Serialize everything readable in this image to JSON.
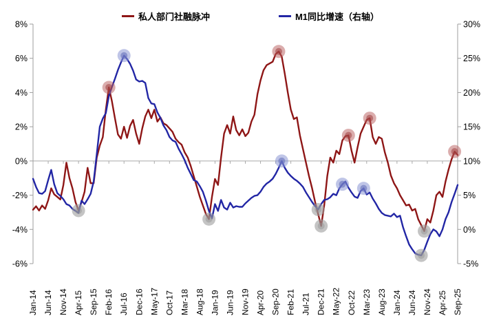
{
  "legend": {
    "series1": "私人部门社融脉冲",
    "series2": "M1同比增速（右轴）"
  },
  "colors": {
    "red_line": "#8e1616",
    "blue_line": "#2226a5",
    "grid": "#a9a9a9",
    "axis": "#9e9e9e",
    "tick_text": "#000000",
    "marker_red_outer": "rgba(184,92,92,0.5)",
    "marker_red_inner": "rgba(158,62,62,0.55)",
    "marker_blue_outer": "rgba(139,149,212,0.55)",
    "marker_blue_inner": "rgba(103,114,189,0.6)",
    "marker_gray_outer": "rgba(156,156,156,0.6)",
    "marker_gray_inner": "rgba(146,146,146,0.45)"
  },
  "chart_data": {
    "type": "line",
    "title": "",
    "x_unit": "month",
    "x_start": "Jan-2014",
    "x_end": "Sep-2025",
    "x_tick_every": 5,
    "x_tick_labels": [
      "Jan-14",
      "Jun-14",
      "Nov-14",
      "Apr-15",
      "Sep-15",
      "Feb-16",
      "Jul-16",
      "Dec-16",
      "May-17",
      "Oct-17",
      "Mar-18",
      "Aug-18",
      "Jan-19",
      "Jun-19",
      "Nov-19",
      "Apr-20",
      "Sep-20",
      "Feb-21",
      "Jul-21",
      "Dec-21",
      "May-22",
      "Oct-22",
      "Mar-23",
      "Aug-23",
      "Jan-24",
      "Jun-24",
      "Nov-24",
      "Apr-25",
      "Sep-25"
    ],
    "left_axis": {
      "min": -6,
      "max": 8,
      "tick_values": [
        8,
        6,
        4,
        2,
        0,
        -2,
        -4,
        -6
      ],
      "tick_labels": [
        "8%",
        "6%",
        "4%",
        "2%",
        "0%",
        "-2%",
        "-4%",
        "-6%"
      ]
    },
    "right_axis": {
      "min": -5,
      "max": 30,
      "tick_values": [
        30,
        25,
        20,
        15,
        10,
        5,
        0,
        -5
      ],
      "tick_labels": [
        "30%",
        "25%",
        "20%",
        "15%",
        "10%",
        "5%",
        "0%",
        "-5%"
      ]
    },
    "grid": "zero-line-only",
    "legend_position": "top",
    "series": [
      {
        "name": "私人部门社融脉冲",
        "axis": "left",
        "color_key": "red_line",
        "values": [
          -2.85,
          -2.65,
          -2.9,
          -2.6,
          -2.8,
          -2.3,
          -1.6,
          -1.95,
          -2.1,
          -2.25,
          -1.4,
          -0.1,
          -1.0,
          -1.6,
          -2.4,
          -2.9,
          -2.4,
          -1.8,
          -0.4,
          -1.3,
          -1.3,
          0.2,
          0.9,
          1.4,
          3.0,
          4.3,
          3.5,
          2.5,
          1.55,
          1.3,
          2.0,
          1.35,
          2.05,
          2.4,
          1.6,
          1.0,
          1.9,
          2.6,
          3.0,
          2.5,
          3.0,
          2.3,
          2.55,
          2.2,
          2.1,
          1.9,
          1.7,
          1.3,
          1.1,
          0.95,
          0.5,
          0.2,
          -0.3,
          -0.9,
          -1.5,
          -2.1,
          -2.6,
          -3.1,
          -3.4,
          -2.1,
          -1.05,
          -1.4,
          0.2,
          1.6,
          2.1,
          1.6,
          2.6,
          1.8,
          1.5,
          1.85,
          1.45,
          1.65,
          2.3,
          2.7,
          3.9,
          4.7,
          5.3,
          5.6,
          5.7,
          5.8,
          6.25,
          6.4,
          6.1,
          5.1,
          4.0,
          3.0,
          2.45,
          2.55,
          1.5,
          0.7,
          -0.1,
          -0.9,
          -1.6,
          -2.4,
          -3.1,
          -3.8,
          -2.6,
          -0.9,
          0.2,
          -0.1,
          0.6,
          0.4,
          1.2,
          1.45,
          1.5,
          0.6,
          -0.1,
          0.8,
          1.6,
          2.0,
          2.4,
          2.5,
          1.4,
          1.0,
          1.4,
          1.3,
          0.5,
          -0.1,
          -0.85,
          -1.3,
          -1.6,
          -2.0,
          -2.3,
          -2.6,
          -2.55,
          -2.9,
          -2.8,
          -3.4,
          -3.75,
          -4.1,
          -3.4,
          -3.6,
          -2.9,
          -2.0,
          -1.8,
          -2.1,
          -1.2,
          -0.5,
          0.1,
          0.55,
          0.35
        ]
      },
      {
        "name": "M1同比增速（右轴）",
        "axis": "right",
        "color_key": "blue_line",
        "values": [
          7.4,
          6.2,
          5.3,
          5.2,
          5.6,
          7.2,
          8.7,
          6.6,
          5.3,
          4.9,
          4.4,
          3.7,
          3.5,
          3.0,
          2.7,
          2.4,
          4.2,
          3.7,
          4.4,
          5.2,
          7.0,
          11.0,
          15.0,
          16.2,
          17.0,
          19.5,
          20.8,
          22.0,
          23.3,
          24.4,
          25.4,
          24.9,
          24.2,
          23.2,
          21.9,
          21.6,
          21.7,
          21.4,
          19.2,
          18.4,
          18.3,
          17.1,
          16.3,
          15.2,
          14.5,
          13.5,
          13.0,
          12.8,
          11.8,
          11.0,
          10.1,
          9.0,
          8.1,
          7.2,
          7.0,
          6.3,
          5.5,
          4.2,
          2.7,
          1.6,
          3.7,
          2.7,
          4.3,
          3.2,
          2.9,
          3.9,
          3.2,
          3.4,
          3.3,
          3.3,
          3.8,
          4.2,
          4.6,
          4.9,
          5.0,
          5.5,
          6.2,
          6.7,
          7.0,
          7.4,
          8.1,
          9.0,
          10.0,
          9.0,
          8.3,
          7.8,
          7.4,
          7.1,
          6.7,
          6.2,
          5.4,
          4.7,
          4.0,
          3.4,
          2.9,
          3.7,
          4.3,
          4.4,
          4.7,
          5.2,
          5.0,
          6.0,
          6.6,
          7.0,
          6.1,
          5.4,
          4.8,
          4.6,
          5.6,
          6.0,
          5.1,
          5.4,
          4.5,
          3.8,
          3.0,
          2.4,
          2.1,
          2.0,
          1.9,
          2.3,
          1.8,
          2.0,
          0.3,
          -1.0,
          -2.2,
          -2.9,
          -3.5,
          -3.7,
          -3.8,
          -3.0,
          -1.8,
          -0.7,
          0.0,
          -0.3,
          -1.0,
          0.0,
          1.5,
          2.5,
          4.0,
          5.2,
          6.5
        ]
      }
    ],
    "markers": [
      {
        "series": 0,
        "index": 15,
        "month": "Apr-15",
        "value": -2.9,
        "kind": "gray"
      },
      {
        "series": 0,
        "index": 25,
        "month": "Feb-16",
        "value": 4.3,
        "kind": "red"
      },
      {
        "series": 1,
        "index": 30,
        "month": "Jul-16",
        "value": 25.4,
        "kind": "blue"
      },
      {
        "series": 0,
        "index": 58,
        "month": "Nov-18",
        "value": -3.4,
        "kind": "gray"
      },
      {
        "series": 0,
        "index": 81,
        "month": "Oct-20",
        "value": 6.4,
        "kind": "red"
      },
      {
        "series": 1,
        "index": 82,
        "month": "Nov-20",
        "value": 10.0,
        "kind": "blue"
      },
      {
        "series": 1,
        "index": 94,
        "month": "Nov-21",
        "value": 2.9,
        "kind": "gray"
      },
      {
        "series": 0,
        "index": 95,
        "month": "Dec-21",
        "value": -3.8,
        "kind": "gray"
      },
      {
        "series": 1,
        "index": 102,
        "month": "Jul-22",
        "value": 6.6,
        "kind": "blue"
      },
      {
        "series": 0,
        "index": 104,
        "month": "Sep-22",
        "value": 1.5,
        "kind": "red"
      },
      {
        "series": 1,
        "index": 109,
        "month": "Feb-23",
        "value": 6.0,
        "kind": "blue"
      },
      {
        "series": 0,
        "index": 111,
        "month": "Apr-23",
        "value": 2.5,
        "kind": "red"
      },
      {
        "series": 1,
        "index": 128,
        "month": "Sep-24",
        "value": -3.8,
        "kind": "gray"
      },
      {
        "series": 0,
        "index": 129,
        "month": "Oct-24",
        "value": -4.1,
        "kind": "gray"
      },
      {
        "series": 0,
        "index": 139,
        "month": "Aug-25",
        "value": 0.55,
        "kind": "red"
      }
    ]
  }
}
